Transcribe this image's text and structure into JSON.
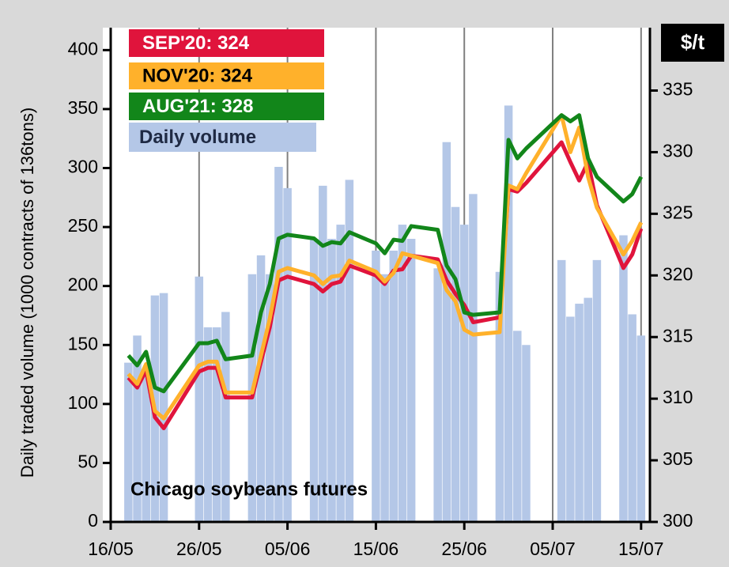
{
  "chart_data": {
    "type": "bar-line",
    "annotation": "Chicago soybeans futures",
    "y_label": "Daily traded volume (1000 contracts of 136tons)",
    "y2_label": "$/t",
    "x": [
      "18/05",
      "19/05",
      "20/05",
      "21/05",
      "22/05",
      "26/05",
      "27/05",
      "28/05",
      "29/05",
      "01/06",
      "02/06",
      "03/06",
      "04/06",
      "05/06",
      "08/06",
      "09/06",
      "10/06",
      "11/06",
      "12/06",
      "15/06",
      "16/06",
      "17/06",
      "18/06",
      "19/06",
      "22/06",
      "23/06",
      "24/06",
      "25/06",
      "26/06",
      "29/06",
      "30/06",
      "01/07",
      "02/07",
      "06/07",
      "07/07",
      "08/07",
      "09/07",
      "10/07",
      "13/07",
      "14/07",
      "15/07"
    ],
    "xlim": [
      "16/05",
      "16/07"
    ],
    "xticks": [
      "16/05",
      "26/05",
      "05/06",
      "15/06",
      "25/06",
      "05/07",
      "15/07"
    ],
    "ylim": [
      0,
      419
    ],
    "yticks": [
      0,
      50,
      100,
      150,
      200,
      250,
      300,
      350,
      400
    ],
    "y2lim": [
      300,
      340.1
    ],
    "y2ticks": [
      300,
      305,
      310,
      315,
      320,
      325,
      330,
      335
    ],
    "grid": true,
    "series": [
      {
        "name": "Daily volume",
        "type": "bar",
        "color": "#b4c7e7",
        "axis": "y",
        "values": [
          135,
          158,
          130,
          192,
          194,
          208,
          165,
          165,
          178,
          210,
          226,
          210,
          301,
          283,
          240,
          285,
          240,
          252,
          290,
          230,
          210,
          230,
          252,
          240,
          215,
          322,
          267,
          252,
          278,
          212,
          353,
          162,
          150,
          222,
          174,
          185,
          190,
          222,
          243,
          176,
          158
        ]
      },
      {
        "name": "SEP'20: 324",
        "type": "line",
        "color": "#e0143c",
        "axis": "y2",
        "values": [
          311.7,
          310.9,
          312.3,
          308.5,
          307.6,
          312.2,
          312.5,
          312.5,
          310.1,
          310.1,
          313.0,
          315.8,
          319.6,
          319.9,
          319.3,
          318.7,
          319.3,
          319.5,
          320.8,
          320.0,
          319.3,
          320.4,
          320.5,
          321.6,
          321.3,
          319.6,
          318.5,
          317.6,
          316.2,
          316.6,
          327.0,
          326.8,
          327.5,
          330.8,
          329.2,
          327.7,
          329.2,
          325.7,
          320.6,
          321.7,
          323.8
        ]
      },
      {
        "name": "NOV'20: 324",
        "type": "line",
        "color": "#ffb12b",
        "axis": "y2",
        "values": [
          312.0,
          311.2,
          312.8,
          309.0,
          308.4,
          312.7,
          313.0,
          313.0,
          310.5,
          310.5,
          313.5,
          316.5,
          320.3,
          320.6,
          320.0,
          319.3,
          319.9,
          320.0,
          321.2,
          320.3,
          319.5,
          320.2,
          321.8,
          321.6,
          321.0,
          318.8,
          317.9,
          315.6,
          315.2,
          315.4,
          327.3,
          327.0,
          328.3,
          333.0,
          330.0,
          332.0,
          328.0,
          325.5,
          321.7,
          322.8,
          324.3
        ]
      },
      {
        "name": "AUG'21: 328",
        "type": "line",
        "color": "#12861a",
        "axis": "y2",
        "values": [
          313.5,
          312.7,
          313.8,
          310.9,
          310.6,
          314.5,
          314.5,
          314.7,
          313.2,
          313.5,
          317.0,
          319.3,
          323.0,
          323.3,
          323.0,
          322.4,
          322.7,
          322.6,
          323.5,
          322.6,
          321.8,
          322.9,
          322.8,
          324.0,
          323.7,
          320.8,
          319.7,
          317.0,
          316.8,
          317.0,
          331.0,
          329.5,
          330.3,
          333.0,
          332.5,
          333.0,
          329.5,
          328.0,
          326.0,
          326.6,
          328.0
        ]
      }
    ]
  }
}
